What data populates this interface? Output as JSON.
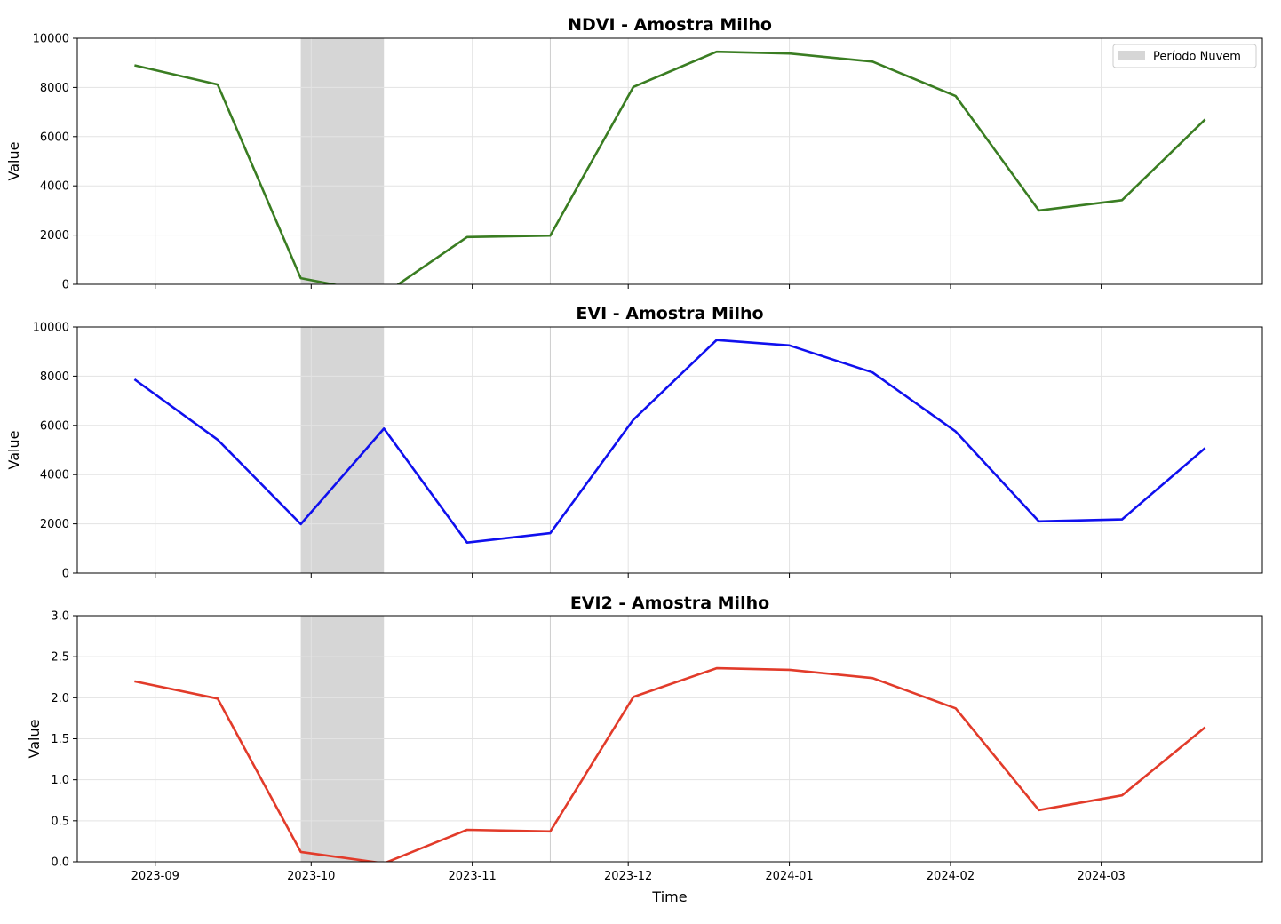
{
  "chart_data": [
    {
      "type": "line",
      "title": "NDVI - Amostra Milho",
      "xlabel": "",
      "ylabel": "Value",
      "ylim": [
        0,
        10000
      ],
      "yticks": [
        0,
        2000,
        4000,
        6000,
        8000,
        10000
      ],
      "yticklabels": [
        "0",
        "2000",
        "4000",
        "6000",
        "8000",
        "10000"
      ],
      "grid": true,
      "series": [
        {
          "color": "#3a7d22",
          "points": [
            [
              "2023-08-28",
              8900
            ],
            [
              "2023-09-13",
              8120
            ],
            [
              "2023-09-29",
              250
            ],
            [
              "2023-10-15",
              -400
            ],
            [
              "2023-10-31",
              1920
            ],
            [
              "2023-11-16",
              1980
            ],
            [
              "2023-12-02",
              8020
            ],
            [
              "2023-12-18",
              9450
            ],
            [
              "2024-01-01",
              9380
            ],
            [
              "2024-01-17",
              9050
            ],
            [
              "2024-02-02",
              7650
            ],
            [
              "2024-02-18",
              3000
            ],
            [
              "2024-03-05",
              3420
            ],
            [
              "2024-03-21",
              6700
            ]
          ]
        }
      ],
      "cloud_span": [
        "2023-09-29",
        "2023-10-15"
      ],
      "legend": {
        "label": "Período Nuvem",
        "position": "upper right"
      }
    },
    {
      "type": "line",
      "title": "EVI - Amostra Milho",
      "xlabel": "",
      "ylabel": "Value",
      "ylim": [
        0,
        10000
      ],
      "yticks": [
        0,
        2000,
        4000,
        6000,
        8000,
        10000
      ],
      "yticklabels": [
        "0",
        "2000",
        "4000",
        "6000",
        "8000",
        "10000"
      ],
      "grid": true,
      "series": [
        {
          "color": "#1010ee",
          "points": [
            [
              "2023-08-28",
              7870
            ],
            [
              "2023-09-13",
              5420
            ],
            [
              "2023-09-29",
              1990
            ],
            [
              "2023-10-15",
              5870
            ],
            [
              "2023-10-31",
              1240
            ],
            [
              "2023-11-16",
              1620
            ],
            [
              "2023-12-02",
              6230
            ],
            [
              "2023-12-18",
              9470
            ],
            [
              "2024-01-01",
              9250
            ],
            [
              "2024-01-17",
              8150
            ],
            [
              "2024-02-02",
              5750
            ],
            [
              "2024-02-18",
              2100
            ],
            [
              "2024-03-05",
              2180
            ],
            [
              "2024-03-21",
              5080
            ]
          ]
        }
      ],
      "cloud_span": [
        "2023-09-29",
        "2023-10-15"
      ]
    },
    {
      "type": "line",
      "title": "EVI2 - Amostra Milho",
      "xlabel": "Time",
      "ylabel": "Value",
      "ylim": [
        0,
        3
      ],
      "yticks": [
        0,
        0.5,
        1,
        1.5,
        2,
        2.5,
        3
      ],
      "yticklabels": [
        "0.0",
        "0.5",
        "1.0",
        "1.5",
        "2.0",
        "2.5",
        "3.0"
      ],
      "grid": true,
      "series": [
        {
          "color": "#e23b2a",
          "points": [
            [
              "2023-08-28",
              2.2
            ],
            [
              "2023-09-13",
              1.99
            ],
            [
              "2023-09-29",
              0.12
            ],
            [
              "2023-10-15",
              -0.02
            ],
            [
              "2023-10-31",
              0.39
            ],
            [
              "2023-11-16",
              0.37
            ],
            [
              "2023-12-02",
              2.01
            ],
            [
              "2023-12-18",
              2.36
            ],
            [
              "2024-01-01",
              2.34
            ],
            [
              "2024-01-17",
              2.24
            ],
            [
              "2024-02-02",
              1.87
            ],
            [
              "2024-02-18",
              0.63
            ],
            [
              "2024-03-05",
              0.81
            ],
            [
              "2024-03-21",
              1.64
            ]
          ]
        }
      ],
      "cloud_span": [
        "2023-09-29",
        "2023-10-15"
      ]
    }
  ],
  "x_axis": {
    "ticks": [
      "2023-09-01",
      "2023-10-01",
      "2023-11-01",
      "2023-12-01",
      "2024-01-01",
      "2024-02-01",
      "2024-03-01"
    ],
    "ticklabels": [
      "2023-09",
      "2023-10",
      "2023-11",
      "2023-12",
      "2024-01",
      "2024-02",
      "2024-03"
    ],
    "range": [
      "2023-08-17",
      "2024-04-01"
    ]
  },
  "colors": {
    "cloud_fill": "#d6d6d6",
    "grid": "#e3e3e3"
  }
}
